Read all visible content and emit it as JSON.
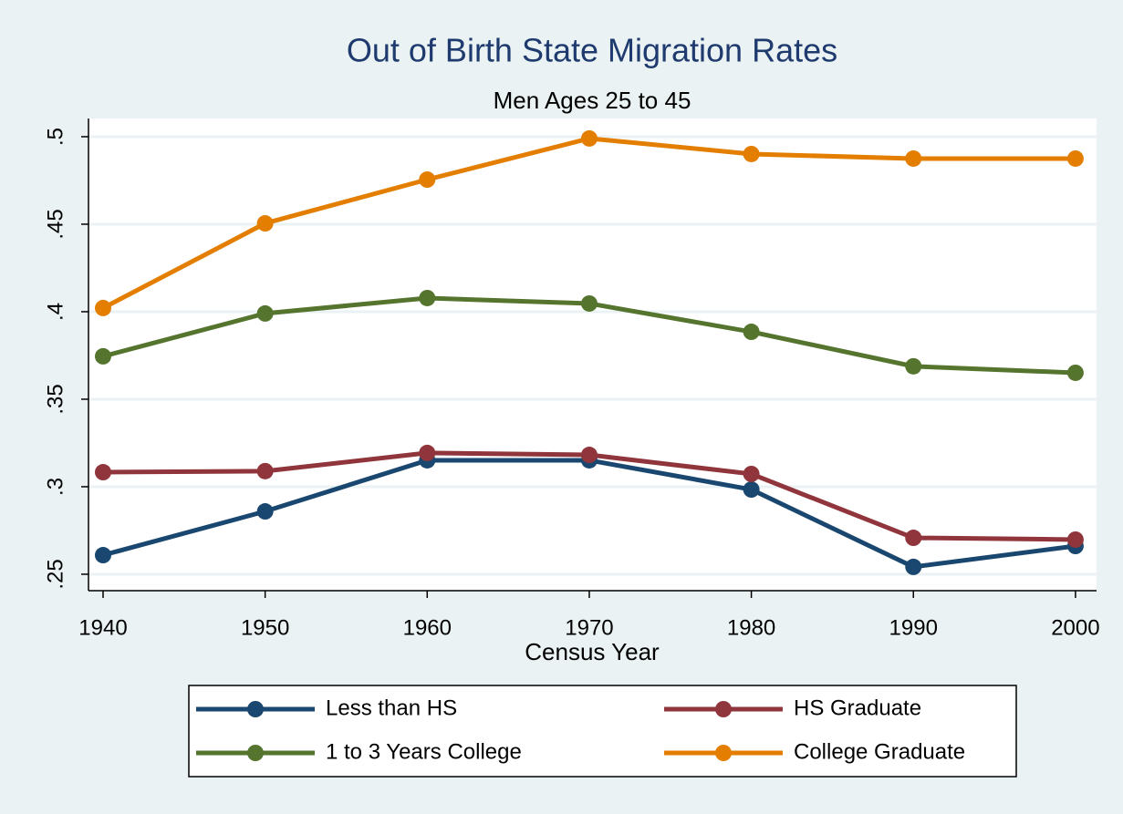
{
  "chart_data": {
    "type": "line",
    "title": "Out of Birth State Migration Rates",
    "subtitle": "Men Ages 25 to 45",
    "x_label": "Census Year",
    "x": [
      1940,
      1950,
      1960,
      1970,
      1980,
      1990,
      2000
    ],
    "xlim": [
      1939.1,
      2001.3
    ],
    "xticks": [
      1940,
      1950,
      1960,
      1970,
      1980,
      1990,
      2000
    ],
    "ylim": [
      0.2406,
      0.5104
    ],
    "yticks": [
      {
        "value": 0.25,
        "label": ".25"
      },
      {
        "value": 0.3,
        "label": ".3"
      },
      {
        "value": 0.35,
        "label": ".35"
      },
      {
        "value": 0.4,
        "label": ".4"
      },
      {
        "value": 0.45,
        "label": ".45"
      },
      {
        "value": 0.5,
        "label": ".5"
      }
    ],
    "grid": true,
    "legend_position": "bottom",
    "series": [
      {
        "name": "Less than HS",
        "color": "#1a476f",
        "values": [
          0.2609,
          0.2859,
          0.3151,
          0.3151,
          0.2984,
          0.2542,
          0.2661
        ]
      },
      {
        "name": "HS Graduate",
        "color": "#90353b",
        "values": [
          0.3083,
          0.3089,
          0.3193,
          0.3182,
          0.3073,
          0.2708,
          0.2698
        ]
      },
      {
        "name": "1 to 3 Years College",
        "color": "#55752f",
        "values": [
          0.3745,
          0.399,
          0.4078,
          0.4047,
          0.3885,
          0.3688,
          0.3651
        ]
      },
      {
        "name": "College Graduate",
        "color": "#e37e00",
        "values": [
          0.4021,
          0.4505,
          0.4755,
          0.499,
          0.4901,
          0.4875,
          0.4875
        ]
      }
    ]
  }
}
